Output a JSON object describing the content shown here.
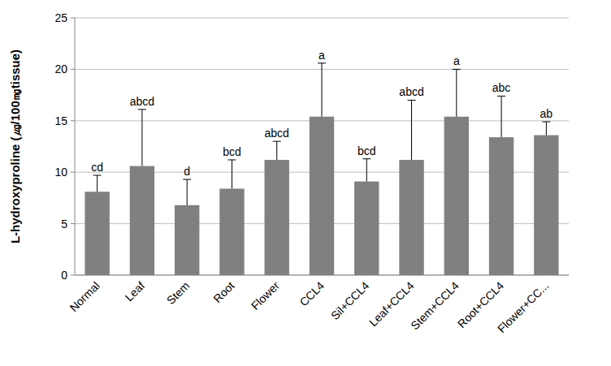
{
  "chart_data": {
    "type": "bar",
    "y_label": "L-hydroxyproline (㎍/100㎎tissue)",
    "categories": [
      "Normal",
      "Leaf",
      "Stem",
      "Root",
      "Flower",
      "CCL4",
      "Sil+CCL4",
      "Leaf+CCL4",
      "Stem+CCL4",
      "Root+CCL4",
      "Flower+CC..."
    ],
    "values": [
      8.1,
      10.6,
      6.8,
      8.4,
      11.2,
      15.4,
      9.1,
      11.2,
      15.4,
      13.4,
      13.6
    ],
    "errors": [
      1.6,
      5.5,
      2.5,
      2.8,
      1.8,
      5.2,
      2.2,
      5.8,
      4.6,
      4.0,
      1.3
    ],
    "annotations": [
      "cd",
      "abcd",
      "d",
      "bcd",
      "abcd",
      "a",
      "bcd",
      "abcd",
      "a",
      "abc",
      "ab"
    ],
    "color": "#808080",
    "ylim": [
      0,
      25
    ],
    "yticks": [
      0,
      5,
      10,
      15,
      20,
      25
    ],
    "grid": true
  }
}
